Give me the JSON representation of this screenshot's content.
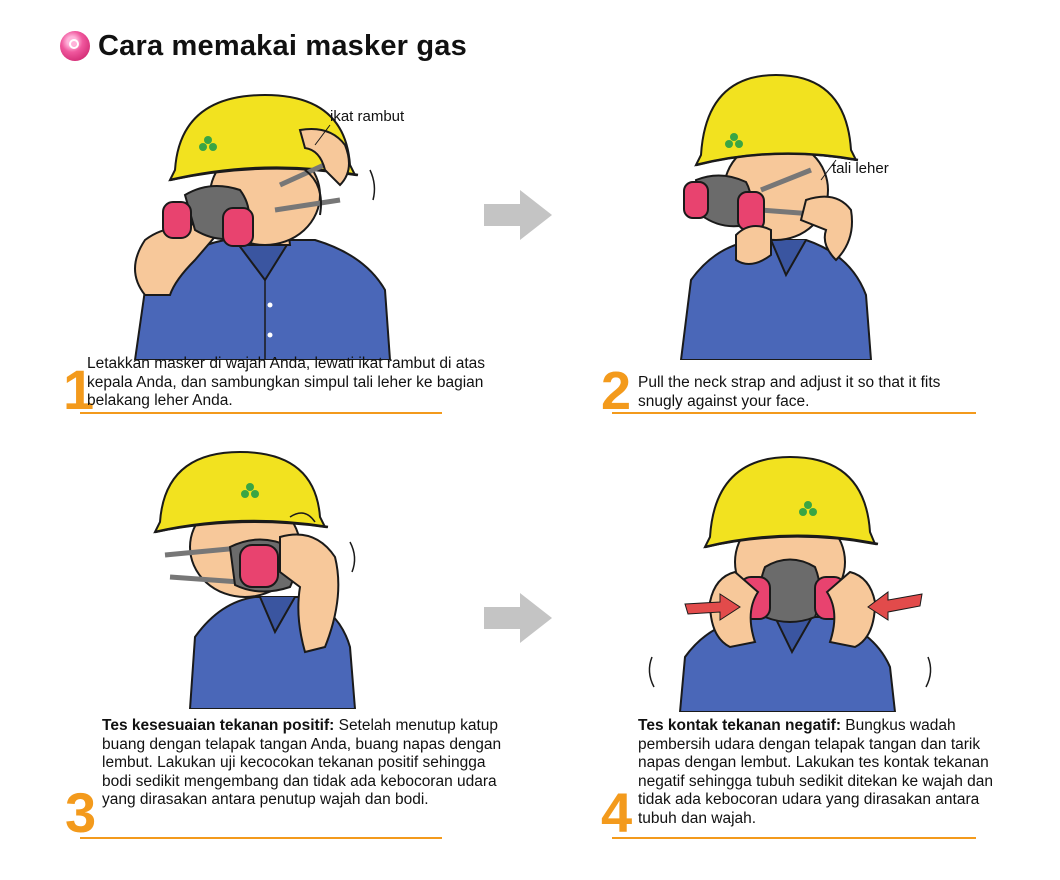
{
  "title": "Cara memakai masker gas",
  "colors": {
    "accent_orange": "#f39a1c",
    "helmet_yellow": "#f2e21f",
    "shirt_blue": "#4a67b8",
    "mask_pink": "#e8436f",
    "arrow_gray": "#c4c4c4"
  },
  "steps": [
    {
      "number": "1",
      "callout": "ikat rambut",
      "caption": "Letakkan masker di wajah Anda, lewati ikat rambut di atas kepala Anda, dan sambungkan simpul tali leher ke bagian belakang leher Anda."
    },
    {
      "number": "2",
      "callout": "tali leher",
      "caption": "Pull the neck strap and adjust it so that it fits snugly against your face."
    },
    {
      "number": "3",
      "caption_bold": "Tes kesesuaian tekanan positif:",
      "caption": " Setelah menutup katup buang dengan telapak tangan Anda, buang napas dengan lembut. Lakukan uji kecocokan tekanan positif sehingga bodi sedikit mengembang dan tidak ada kebocoran udara yang dirasakan antara penutup wajah dan bodi."
    },
    {
      "number": "4",
      "caption_bold": "Tes kontak tekanan negatif:",
      "caption": " Bungkus wadah pembersih udara dengan telapak tangan dan tarik napas dengan lembut. Lakukan tes kontak tekanan negatif sehingga tubuh sedikit ditekan ke wajah dan tidak ada kebocoran udara yang dirasakan antara tubuh dan wajah."
    }
  ]
}
